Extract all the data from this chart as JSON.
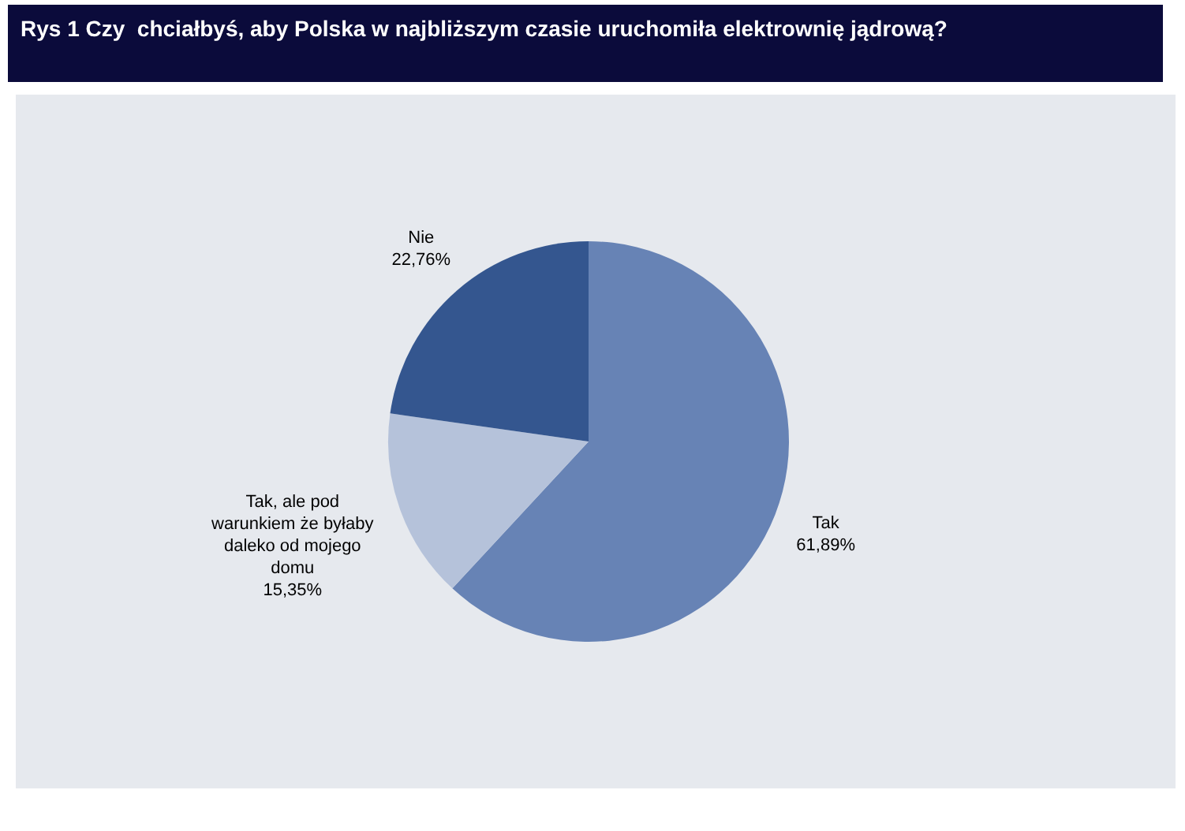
{
  "chart_data": {
    "type": "pie",
    "title": "Rys 1 Czy  chciałbyś, aby Polska w najbliższym czasie uruchomiła elektrownię jądrową?",
    "categories": [
      "Tak",
      "Tak, ale pod warunkiem że byłaby daleko od mojego domu",
      "Nie"
    ],
    "values": [
      61.89,
      15.35,
      22.76
    ],
    "colors": [
      "#6783b5",
      "#b5c2da",
      "#34568f"
    ],
    "value_labels": [
      "61,89%",
      "15,35%",
      "22,76%"
    ],
    "legend": false
  }
}
